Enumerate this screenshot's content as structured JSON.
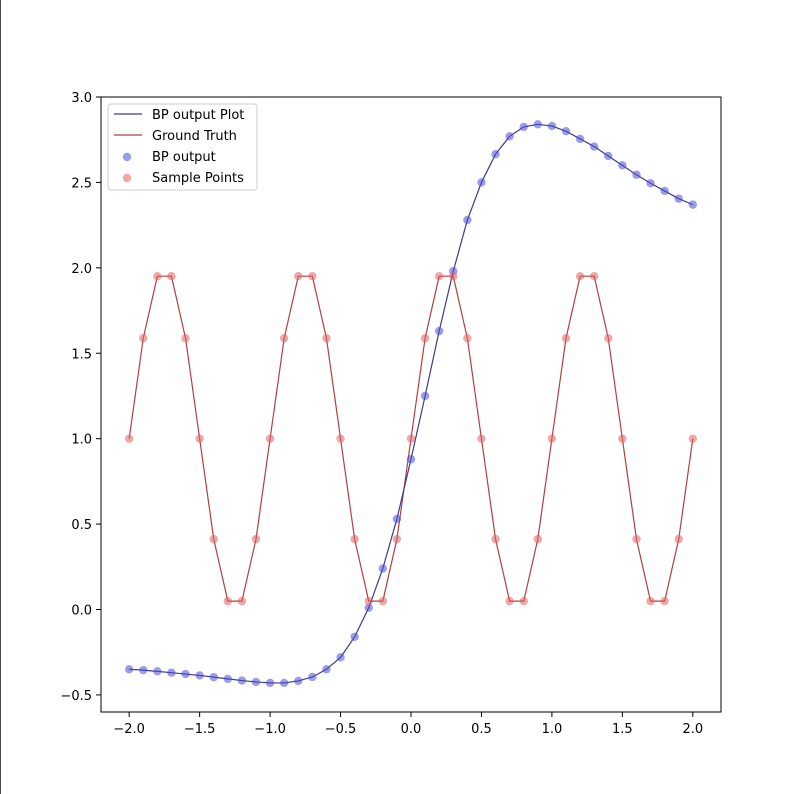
{
  "chart_data": {
    "type": "line",
    "title": "",
    "xlabel": "",
    "ylabel": "",
    "xlim": [
      -2.2,
      2.2
    ],
    "ylim": [
      -0.6,
      3.0
    ],
    "xticks": [
      -2.0,
      -1.5,
      -1.0,
      -0.5,
      0.0,
      0.5,
      1.0,
      1.5,
      2.0
    ],
    "xtick_labels": [
      "−2.0",
      "−1.5",
      "−1.0",
      "−0.5",
      "0.0",
      "0.5",
      "1.0",
      "1.5",
      "2.0"
    ],
    "yticks": [
      -0.5,
      0.0,
      0.5,
      1.0,
      1.5,
      2.0,
      2.5,
      3.0
    ],
    "ytick_labels": [
      "−0.5",
      "0.0",
      "0.5",
      "1.0",
      "1.5",
      "2.0",
      "2.5",
      "3.0"
    ],
    "grid": false,
    "legend_position": "top-left",
    "legend": [
      "BP output Plot",
      "Ground Truth",
      "BP output",
      "Sample Points"
    ],
    "x": [
      -2.0,
      -1.9,
      -1.8,
      -1.7,
      -1.6,
      -1.5,
      -1.4,
      -1.3,
      -1.2,
      -1.1,
      -1.0,
      -0.9,
      -0.8,
      -0.7,
      -0.6,
      -0.5,
      -0.4,
      -0.3,
      -0.2,
      -0.1,
      0.0,
      0.1,
      0.2,
      0.3,
      0.4,
      0.5,
      0.6,
      0.7,
      0.8,
      0.9,
      1.0,
      1.1,
      1.2,
      1.3,
      1.4,
      1.5,
      1.6,
      1.7,
      1.8,
      1.9,
      2.0
    ],
    "series": [
      {
        "name": "BP output",
        "color": "#4b4bd6",
        "line_color": "#3b3b8f",
        "values": [
          -0.35,
          -0.355,
          -0.362,
          -0.37,
          -0.378,
          -0.386,
          -0.396,
          -0.406,
          -0.416,
          -0.424,
          -0.43,
          -0.43,
          -0.418,
          -0.395,
          -0.35,
          -0.28,
          -0.16,
          0.01,
          0.24,
          0.53,
          0.88,
          1.25,
          1.63,
          1.98,
          2.28,
          2.5,
          2.665,
          2.77,
          2.825,
          2.84,
          2.83,
          2.8,
          2.755,
          2.71,
          2.655,
          2.6,
          2.545,
          2.495,
          2.45,
          2.405,
          2.37
        ]
      },
      {
        "name": "Sample Points",
        "color": "#e06060",
        "line_color": "#b24040",
        "values": [
          1.0,
          1.588,
          1.951,
          1.951,
          1.588,
          1.0,
          0.412,
          0.049,
          0.049,
          0.412,
          1.0,
          1.588,
          1.951,
          1.951,
          1.588,
          1.0,
          0.412,
          0.049,
          0.049,
          0.412,
          1.0,
          1.588,
          1.951,
          1.951,
          1.588,
          1.0,
          0.412,
          0.049,
          0.049,
          0.412,
          1.0,
          1.588,
          1.951,
          1.951,
          1.588,
          1.0,
          0.412,
          0.049,
          0.049,
          0.412,
          1.0
        ]
      }
    ]
  }
}
